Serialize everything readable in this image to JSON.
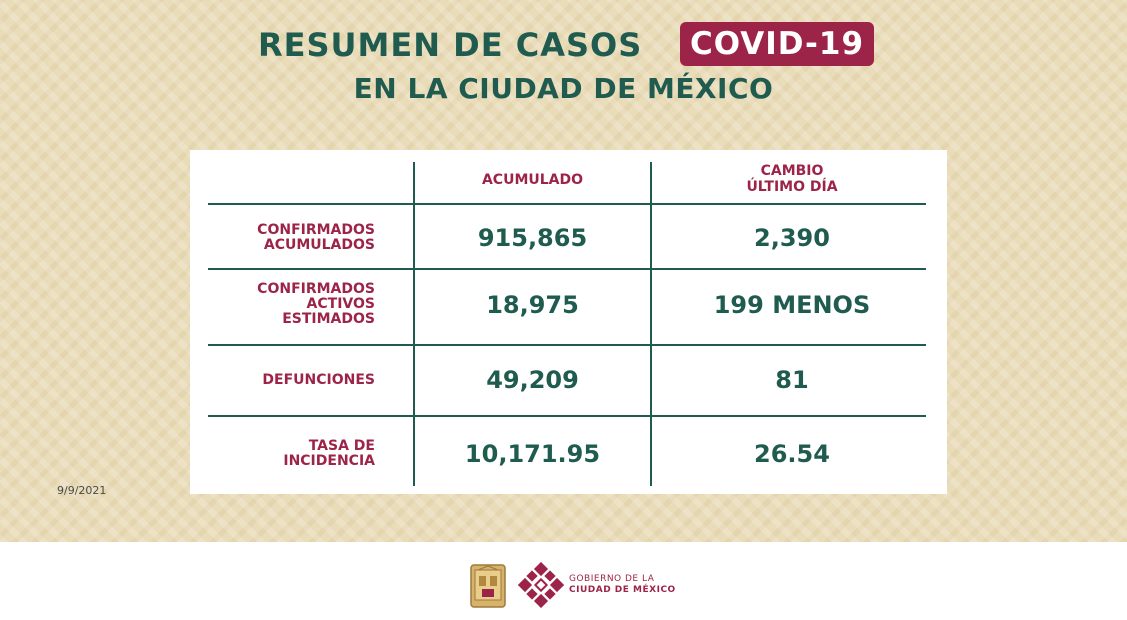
{
  "header": {
    "title": "RESUMEN DE CASOS",
    "badge": "COVID-19",
    "subtitle": "EN LA CIUDAD DE MÉXICO"
  },
  "date": "9/9/2021",
  "table": {
    "columns": [
      "ACUMULADO",
      "CAMBIO\nÚLTIMO DÍA"
    ],
    "column_lines": {
      "acumulado": "ACUMULADO",
      "cambio_l1": "CAMBIO",
      "cambio_l2": "ÚLTIMO DÍA"
    },
    "rows": [
      {
        "label_lines": [
          "CONFIRMADOS",
          "ACUMULADOS"
        ],
        "acumulado": "915,865",
        "cambio": "2,390"
      },
      {
        "label_lines": [
          "CONFIRMADOS",
          "ACTIVOS",
          "ESTIMADOS"
        ],
        "acumulado": "18,975",
        "cambio": "199 MENOS"
      },
      {
        "label_lines": [
          "DEFUNCIONES"
        ],
        "acumulado": "49,209",
        "cambio": "81"
      },
      {
        "label_lines": [
          "TASA DE",
          "INCIDENCIA"
        ],
        "acumulado": "10,171.95",
        "cambio": "26.54"
      }
    ]
  },
  "footer": {
    "logo_text_line1": "GOBIERNO DE LA",
    "logo_text_line2": "CIUDAD DE MÉXICO",
    "icons": [
      "coat-of-arms-icon",
      "cdmx-logo-icon"
    ]
  },
  "colors": {
    "green": "#1f5b4f",
    "maroon": "#9d2449",
    "background": "#e9dcb9"
  }
}
